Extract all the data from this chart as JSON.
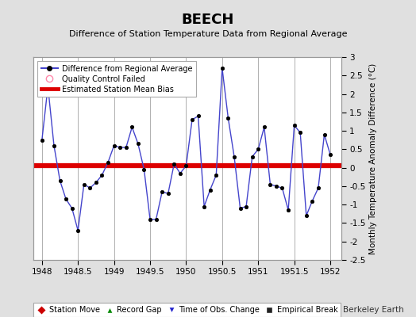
{
  "title": "BEECH",
  "subtitle": "Difference of Station Temperature Data from Regional Average",
  "ylabel_right": "Monthly Temperature Anomaly Difference (°C)",
  "bias": 0.05,
  "xlim": [
    1947.88,
    1952.15
  ],
  "ylim": [
    -2.5,
    3.0
  ],
  "yticks": [
    -2.5,
    -2,
    -1.5,
    -1,
    -0.5,
    0,
    0.5,
    1,
    1.5,
    2,
    2.5,
    3
  ],
  "ytick_labels": [
    "-2.5",
    "-2",
    "-1.5",
    "-1",
    "-0.5",
    "0",
    "0.5",
    "1",
    "1.5",
    "2",
    "2.5",
    "3"
  ],
  "xticks": [
    1948,
    1948.5,
    1949,
    1949.5,
    1950,
    1950.5,
    1951,
    1951.5,
    1952
  ],
  "xtick_labels": [
    "1948",
    "1948.5",
    "1949",
    "1949.5",
    "1950",
    "1950.5",
    "1951",
    "1951.5",
    "1952"
  ],
  "background_color": "#e0e0e0",
  "plot_bg_color": "#ffffff",
  "grid_color": "#b0b0b0",
  "line_color": "#4444cc",
  "bias_color": "#dd0000",
  "marker_color": "#000000",
  "footer_text": "Berkeley Earth",
  "x_data": [
    1948.0,
    1948.083,
    1948.167,
    1948.25,
    1948.333,
    1948.417,
    1948.5,
    1948.583,
    1948.667,
    1948.75,
    1948.833,
    1948.917,
    1949.0,
    1949.083,
    1949.167,
    1949.25,
    1949.333,
    1949.417,
    1949.5,
    1949.583,
    1949.667,
    1949.75,
    1949.833,
    1949.917,
    1950.0,
    1950.083,
    1950.167,
    1950.25,
    1950.333,
    1950.417,
    1950.5,
    1950.583,
    1950.667,
    1950.75,
    1950.833,
    1950.917,
    1951.0,
    1951.083,
    1951.167,
    1951.25,
    1951.333,
    1951.417,
    1951.5,
    1951.583,
    1951.667,
    1951.75,
    1951.833,
    1951.917,
    1952.0
  ],
  "y_data": [
    0.75,
    2.2,
    0.6,
    -0.35,
    -0.85,
    -1.1,
    -1.7,
    -0.45,
    -0.55,
    -0.4,
    -0.2,
    0.15,
    0.6,
    0.55,
    0.55,
    1.1,
    0.65,
    -0.05,
    -1.4,
    -1.4,
    -0.65,
    -0.7,
    0.1,
    -0.15,
    0.05,
    1.3,
    1.4,
    -1.05,
    -0.6,
    -0.2,
    2.7,
    1.35,
    0.3,
    -1.1,
    -1.05,
    0.3,
    0.5,
    1.1,
    -0.45,
    -0.5,
    -0.55,
    -1.15,
    1.15,
    0.95,
    -1.3,
    -0.9,
    -0.55,
    0.9,
    0.35
  ]
}
